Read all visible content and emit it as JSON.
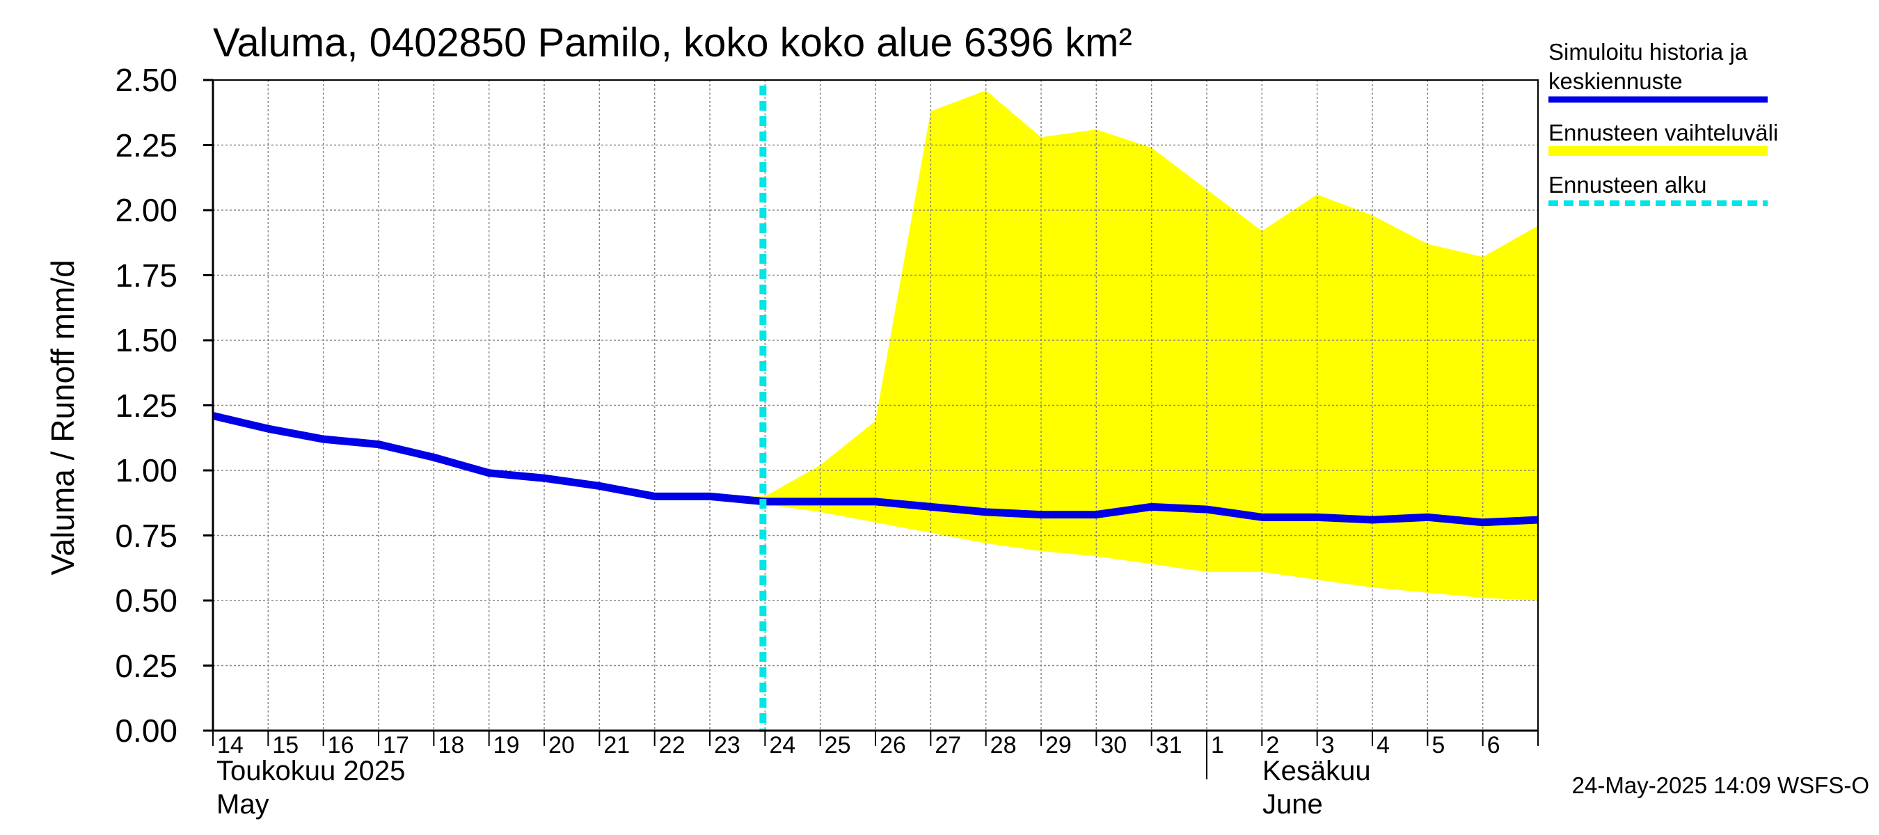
{
  "title": "Valuma, 0402850 Pamilo, koko koko alue 6396 km²",
  "y_axis_label": "Valuma / Runoff    mm/d",
  "months": [
    {
      "line1": "Toukokuu  2025",
      "line2": "May"
    },
    {
      "line1": "Kesäkuu",
      "line2": "June"
    }
  ],
  "legend": {
    "sim_line1": "Simuloitu historia ja",
    "sim_line2": "keskiennuste",
    "range": "Ennusteen vaihteluväli",
    "start": "Ennusteen alku"
  },
  "footer": "24-May-2025 14:09 WSFS-O",
  "colors": {
    "simulated": "#0000e6",
    "range": "#ffff00",
    "forecast_start": "#00e5e5",
    "grid": "#888888"
  },
  "chart_data": {
    "type": "area",
    "ylim": [
      0,
      2.5
    ],
    "grid": true,
    "legend_position": "right",
    "y_ticks": [
      "0.00",
      "0.25",
      "0.50",
      "0.75",
      "1.00",
      "1.25",
      "1.50",
      "1.75",
      "2.00",
      "2.25",
      "2.50"
    ],
    "x_ticks": [
      "14",
      "15",
      "16",
      "17",
      "18",
      "19",
      "20",
      "21",
      "22",
      "23",
      "24",
      "25",
      "26",
      "27",
      "28",
      "29",
      "30",
      "31",
      "1",
      "2",
      "3",
      "4",
      "5",
      "6"
    ],
    "x_range": [
      "2025-05-14",
      "2025-06-07"
    ],
    "forecast_start": "2025-05-24",
    "series": [
      {
        "name": "Simuloitu historia ja keskiennuste",
        "x": [
          "2025-05-14",
          "2025-05-15",
          "2025-05-16",
          "2025-05-17",
          "2025-05-18",
          "2025-05-19",
          "2025-05-20",
          "2025-05-21",
          "2025-05-22",
          "2025-05-23",
          "2025-05-24",
          "2025-05-25",
          "2025-05-26",
          "2025-05-27",
          "2025-05-28",
          "2025-05-29",
          "2025-05-30",
          "2025-05-31",
          "2025-06-01",
          "2025-06-02",
          "2025-06-03",
          "2025-06-04",
          "2025-06-05",
          "2025-06-06",
          "2025-06-07"
        ],
        "values": [
          1.21,
          1.16,
          1.12,
          1.1,
          1.05,
          0.99,
          0.97,
          0.94,
          0.9,
          0.9,
          0.88,
          0.88,
          0.88,
          0.86,
          0.84,
          0.83,
          0.83,
          0.86,
          0.85,
          0.82,
          0.82,
          0.81,
          0.82,
          0.8,
          0.81
        ]
      },
      {
        "name": "Ennusteen vaihteluväli",
        "x": [
          "2025-05-23",
          "2025-05-24",
          "2025-05-25",
          "2025-05-26",
          "2025-05-27",
          "2025-05-28",
          "2025-05-29",
          "2025-05-30",
          "2025-05-31",
          "2025-06-01",
          "2025-06-02",
          "2025-06-03",
          "2025-06-04",
          "2025-06-05",
          "2025-06-06",
          "2025-06-07"
        ],
        "upper": [
          0.9,
          0.9,
          1.02,
          1.19,
          2.38,
          2.46,
          2.28,
          2.31,
          2.24,
          2.08,
          1.92,
          2.06,
          1.98,
          1.87,
          1.82,
          1.94
        ],
        "lower": [
          0.9,
          0.87,
          0.84,
          0.8,
          0.76,
          0.72,
          0.69,
          0.67,
          0.64,
          0.61,
          0.61,
          0.58,
          0.55,
          0.53,
          0.51,
          0.5
        ]
      }
    ]
  }
}
